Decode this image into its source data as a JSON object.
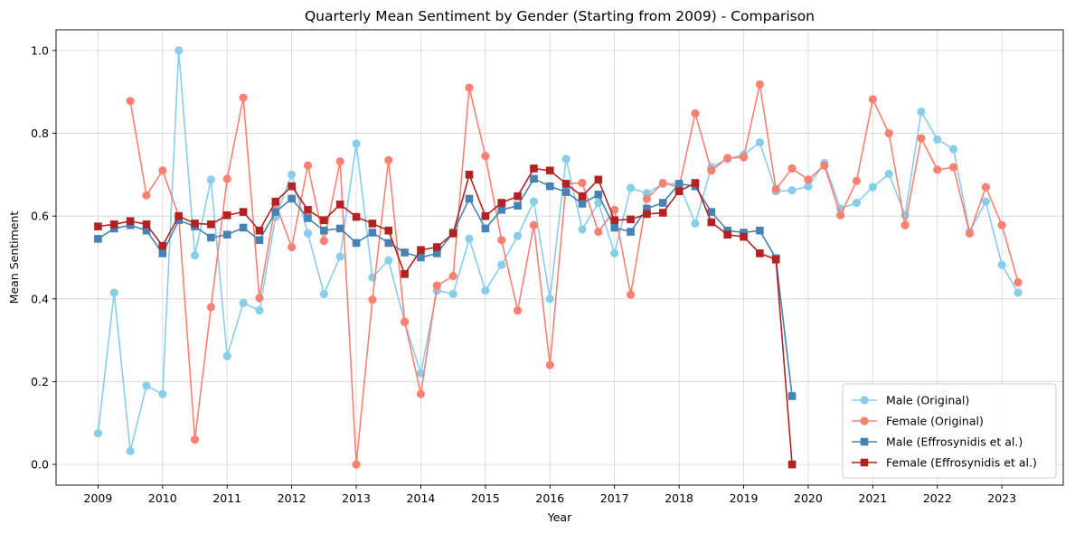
{
  "chart_data": {
    "type": "line",
    "title": "Quarterly Mean Sentiment by Gender (Starting from 2009) - Comparison",
    "xlabel": "Year",
    "ylabel": "Mean Sentiment",
    "xlim": [
      2008.35,
      2023.95
    ],
    "ylim": [
      -0.05,
      1.05
    ],
    "xticks": [
      2009,
      2010,
      2011,
      2012,
      2013,
      2014,
      2015,
      2016,
      2017,
      2018,
      2019,
      2020,
      2021,
      2022,
      2023
    ],
    "xtick_labels": [
      "2009",
      "2010",
      "2011",
      "2012",
      "2013",
      "2014",
      "2015",
      "2016",
      "2017",
      "2018",
      "2019",
      "2020",
      "2021",
      "2022",
      "2023"
    ],
    "yticks": [
      0.0,
      0.2,
      0.4,
      0.6,
      0.8,
      1.0
    ],
    "ytick_labels": [
      "0.0",
      "0.2",
      "0.4",
      "0.6",
      "0.8",
      "1.0"
    ],
    "grid": true,
    "legend_position": "lower-right",
    "series": [
      {
        "name": "Male (Original)",
        "color": "#87ceeb",
        "marker": "circle",
        "points": [
          [
            2009.0,
            0.075
          ],
          [
            2009.25,
            0.415
          ],
          [
            2009.5,
            0.032
          ],
          [
            2009.75,
            0.19
          ],
          [
            2010.0,
            0.17
          ],
          [
            2010.25,
            1.0
          ],
          [
            2010.5,
            0.505
          ],
          [
            2010.75,
            0.688
          ],
          [
            2011.0,
            0.262
          ],
          [
            2011.25,
            0.39
          ],
          [
            2011.5,
            0.372
          ],
          [
            2011.75,
            0.598
          ],
          [
            2012.0,
            0.7
          ],
          [
            2012.25,
            0.558
          ],
          [
            2012.5,
            0.412
          ],
          [
            2012.75,
            0.502
          ],
          [
            2013.0,
            0.775
          ],
          [
            2013.25,
            0.452
          ],
          [
            2013.5,
            0.493
          ],
          [
            2013.75,
            0.343
          ],
          [
            2014.0,
            0.22
          ],
          [
            2014.25,
            0.42
          ],
          [
            2014.5,
            0.412
          ],
          [
            2014.75,
            0.545
          ],
          [
            2015.0,
            0.42
          ],
          [
            2015.25,
            0.482
          ],
          [
            2015.5,
            0.552
          ],
          [
            2015.75,
            0.635
          ],
          [
            2016.0,
            0.4
          ],
          [
            2016.25,
            0.738
          ],
          [
            2016.5,
            0.568
          ],
          [
            2016.75,
            0.632
          ],
          [
            2017.0,
            0.51
          ],
          [
            2017.25,
            0.668
          ],
          [
            2017.5,
            0.655
          ],
          [
            2017.75,
            0.678
          ],
          [
            2018.0,
            0.678
          ],
          [
            2018.25,
            0.582
          ],
          [
            2018.5,
            0.718
          ],
          [
            2018.75,
            0.738
          ],
          [
            2019.0,
            0.748
          ],
          [
            2019.25,
            0.778
          ],
          [
            2019.5,
            0.66
          ],
          [
            2019.75,
            0.662
          ],
          [
            2020.0,
            0.672
          ],
          [
            2020.25,
            0.728
          ],
          [
            2020.5,
            0.618
          ],
          [
            2020.75,
            0.632
          ],
          [
            2021.0,
            0.67
          ],
          [
            2021.25,
            0.702
          ],
          [
            2021.5,
            0.602
          ],
          [
            2021.75,
            0.852
          ],
          [
            2022.0,
            0.785
          ],
          [
            2022.25,
            0.762
          ],
          [
            2022.5,
            0.562
          ],
          [
            2022.75,
            0.635
          ],
          [
            2023.0,
            0.482
          ],
          [
            2023.25,
            0.415
          ]
        ]
      },
      {
        "name": "Female (Original)",
        "color": "#fa8072",
        "marker": "circle",
        "points": [
          [
            2009.5,
            0.878
          ],
          [
            2009.75,
            0.65
          ],
          [
            2010.0,
            0.71
          ],
          [
            2010.25,
            0.6
          ],
          [
            2010.5,
            0.06
          ],
          [
            2010.75,
            0.38
          ],
          [
            2011.0,
            0.69
          ],
          [
            2011.25,
            0.886
          ],
          [
            2011.5,
            0.402
          ],
          [
            2011.75,
            0.63
          ],
          [
            2012.0,
            0.525
          ],
          [
            2012.25,
            0.722
          ],
          [
            2012.5,
            0.54
          ],
          [
            2012.75,
            0.732
          ],
          [
            2013.0,
            0.0
          ],
          [
            2013.25,
            0.398
          ],
          [
            2013.5,
            0.735
          ],
          [
            2013.75,
            0.345
          ],
          [
            2014.0,
            0.17
          ],
          [
            2014.25,
            0.432
          ],
          [
            2014.5,
            0.455
          ],
          [
            2014.75,
            0.91
          ],
          [
            2015.0,
            0.745
          ],
          [
            2015.25,
            0.542
          ],
          [
            2015.5,
            0.372
          ],
          [
            2015.75,
            0.578
          ],
          [
            2016.0,
            0.24
          ],
          [
            2016.25,
            0.678
          ],
          [
            2016.5,
            0.68
          ],
          [
            2016.75,
            0.562
          ],
          [
            2017.0,
            0.615
          ],
          [
            2017.25,
            0.41
          ],
          [
            2017.5,
            0.642
          ],
          [
            2017.75,
            0.68
          ],
          [
            2018.0,
            0.67
          ],
          [
            2018.25,
            0.848
          ],
          [
            2018.5,
            0.71
          ],
          [
            2018.75,
            0.74
          ],
          [
            2019.0,
            0.742
          ],
          [
            2019.25,
            0.918
          ],
          [
            2019.5,
            0.665
          ],
          [
            2019.75,
            0.715
          ],
          [
            2020.0,
            0.688
          ],
          [
            2020.25,
            0.722
          ],
          [
            2020.5,
            0.602
          ],
          [
            2020.75,
            0.685
          ],
          [
            2021.0,
            0.882
          ],
          [
            2021.25,
            0.8
          ],
          [
            2021.5,
            0.578
          ],
          [
            2021.75,
            0.788
          ],
          [
            2022.0,
            0.712
          ],
          [
            2022.25,
            0.718
          ],
          [
            2022.5,
            0.558
          ],
          [
            2022.75,
            0.67
          ],
          [
            2023.0,
            0.578
          ],
          [
            2023.25,
            0.44
          ]
        ]
      },
      {
        "name": "Male (Effrosynidis et al.)",
        "color": "#4682b4",
        "marker": "square",
        "points": [
          [
            2009.0,
            0.545
          ],
          [
            2009.25,
            0.57
          ],
          [
            2009.5,
            0.578
          ],
          [
            2009.75,
            0.565
          ],
          [
            2010.0,
            0.51
          ],
          [
            2010.25,
            0.59
          ],
          [
            2010.5,
            0.575
          ],
          [
            2010.75,
            0.548
          ],
          [
            2011.0,
            0.555
          ],
          [
            2011.25,
            0.572
          ],
          [
            2011.5,
            0.542
          ],
          [
            2011.75,
            0.61
          ],
          [
            2012.0,
            0.642
          ],
          [
            2012.25,
            0.595
          ],
          [
            2012.5,
            0.565
          ],
          [
            2012.75,
            0.57
          ],
          [
            2013.0,
            0.535
          ],
          [
            2013.25,
            0.56
          ],
          [
            2013.5,
            0.535
          ],
          [
            2013.75,
            0.512
          ],
          [
            2014.0,
            0.5
          ],
          [
            2014.25,
            0.51
          ],
          [
            2014.5,
            0.56
          ],
          [
            2014.75,
            0.642
          ],
          [
            2015.0,
            0.57
          ],
          [
            2015.25,
            0.615
          ],
          [
            2015.5,
            0.625
          ],
          [
            2015.75,
            0.69
          ],
          [
            2016.0,
            0.672
          ],
          [
            2016.25,
            0.658
          ],
          [
            2016.5,
            0.63
          ],
          [
            2016.75,
            0.652
          ],
          [
            2017.0,
            0.572
          ],
          [
            2017.25,
            0.562
          ],
          [
            2017.5,
            0.618
          ],
          [
            2017.75,
            0.632
          ],
          [
            2018.0,
            0.678
          ],
          [
            2018.25,
            0.672
          ],
          [
            2018.5,
            0.61
          ],
          [
            2018.75,
            0.565
          ],
          [
            2019.0,
            0.56
          ],
          [
            2019.25,
            0.565
          ],
          [
            2019.5,
            0.498
          ],
          [
            2019.75,
            0.165
          ]
        ]
      },
      {
        "name": "Female (Effrosynidis et al.)",
        "color": "#b22222",
        "marker": "square",
        "points": [
          [
            2009.0,
            0.575
          ],
          [
            2009.25,
            0.58
          ],
          [
            2009.5,
            0.588
          ],
          [
            2009.75,
            0.58
          ],
          [
            2010.0,
            0.528
          ],
          [
            2010.25,
            0.6
          ],
          [
            2010.5,
            0.582
          ],
          [
            2010.75,
            0.58
          ],
          [
            2011.0,
            0.602
          ],
          [
            2011.25,
            0.61
          ],
          [
            2011.5,
            0.565
          ],
          [
            2011.75,
            0.635
          ],
          [
            2012.0,
            0.672
          ],
          [
            2012.25,
            0.615
          ],
          [
            2012.5,
            0.59
          ],
          [
            2012.75,
            0.628
          ],
          [
            2013.0,
            0.598
          ],
          [
            2013.25,
            0.582
          ],
          [
            2013.5,
            0.565
          ],
          [
            2013.75,
            0.46
          ],
          [
            2014.0,
            0.518
          ],
          [
            2014.25,
            0.525
          ],
          [
            2014.5,
            0.558
          ],
          [
            2014.75,
            0.7
          ],
          [
            2015.0,
            0.6
          ],
          [
            2015.25,
            0.632
          ],
          [
            2015.5,
            0.648
          ],
          [
            2015.75,
            0.715
          ],
          [
            2016.0,
            0.71
          ],
          [
            2016.25,
            0.678
          ],
          [
            2016.5,
            0.648
          ],
          [
            2016.75,
            0.688
          ],
          [
            2017.0,
            0.59
          ],
          [
            2017.25,
            0.592
          ],
          [
            2017.5,
            0.605
          ],
          [
            2017.75,
            0.608
          ],
          [
            2018.0,
            0.66
          ],
          [
            2018.25,
            0.68
          ],
          [
            2018.5,
            0.585
          ],
          [
            2018.75,
            0.555
          ],
          [
            2019.0,
            0.55
          ],
          [
            2019.25,
            0.51
          ],
          [
            2019.5,
            0.495
          ],
          [
            2019.75,
            0.0
          ]
        ]
      }
    ]
  }
}
